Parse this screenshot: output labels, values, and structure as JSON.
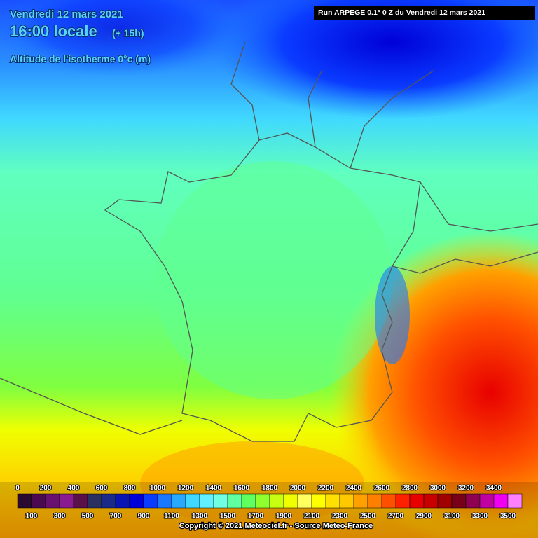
{
  "header": {
    "date": "Vendredi 12 mars 2021",
    "time": "16:00 locale",
    "offset": "(+ 15h)",
    "parameter": "Altitude de l'isotherme 0°c (m)",
    "run": "Run ARPEGE 0.1° 0 Z du Vendredi 12 mars 2021"
  },
  "legend": {
    "top_labels": [
      0,
      200,
      400,
      600,
      800,
      1000,
      1200,
      1400,
      1600,
      1800,
      2000,
      2200,
      2400,
      2600,
      2800,
      3000,
      3200,
      3400
    ],
    "bottom_labels": [
      100,
      300,
      500,
      700,
      900,
      1100,
      1300,
      1500,
      1700,
      1900,
      2100,
      2300,
      2500,
      2700,
      2900,
      3100,
      3300,
      3500
    ],
    "colors": [
      "#2a0a30",
      "#4a0a50",
      "#6a1070",
      "#8a1a90",
      "#5a1048",
      "#2a3060",
      "#1a2a8a",
      "#0a14b0",
      "#0000d8",
      "#0a3cff",
      "#1a78ff",
      "#28a8ff",
      "#40d8ff",
      "#60f0ff",
      "#70ffe0",
      "#60ffa0",
      "#60ff60",
      "#90ff30",
      "#c8ff10",
      "#f0ff00",
      "#ffff60",
      "#ffff00",
      "#ffe000",
      "#ffc800",
      "#ffa000",
      "#ff8000",
      "#ff5000",
      "#ff2000",
      "#e80000",
      "#c80000",
      "#a00000",
      "#780018",
      "#900050",
      "#c000a0",
      "#f000f0",
      "#ff80ff"
    ]
  },
  "footer": {
    "copyright": "Copyright © 2021 Meteociel.fr - Source Meteo-France"
  }
}
